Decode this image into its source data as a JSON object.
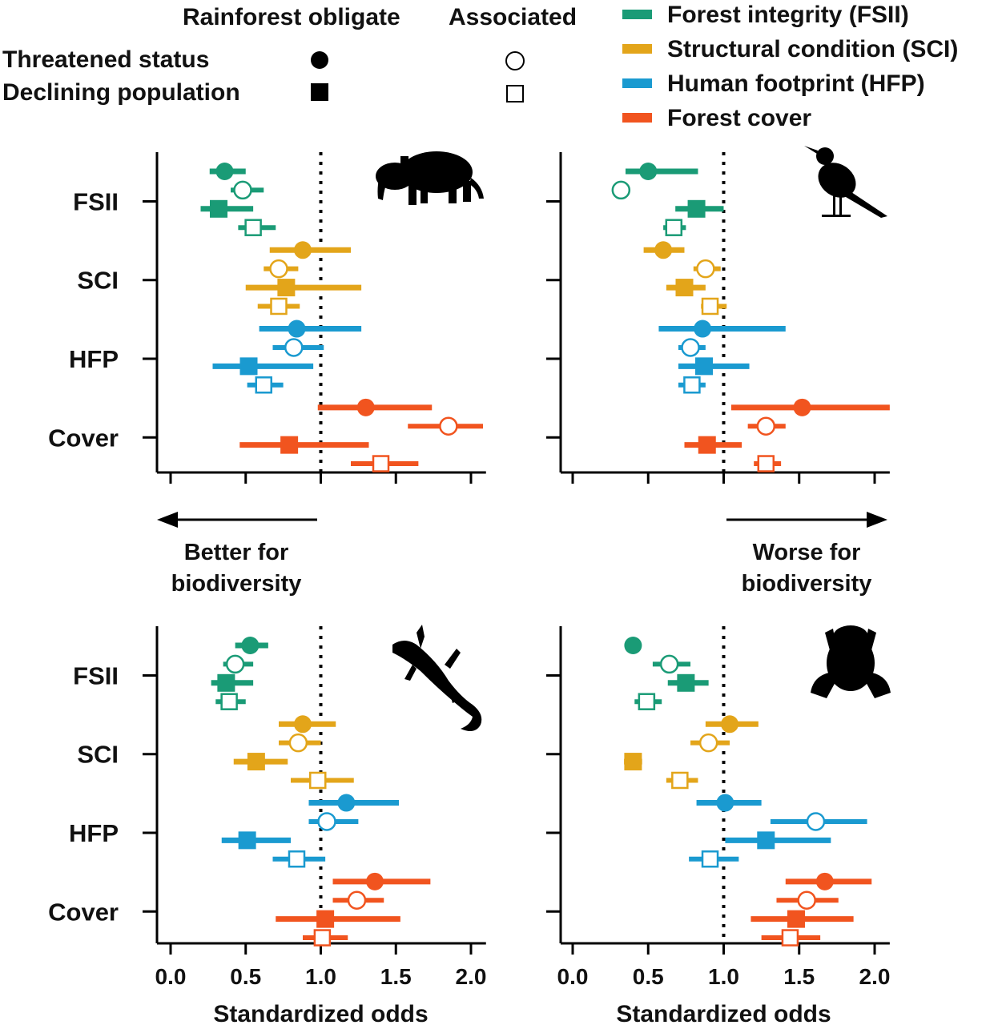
{
  "legend": {
    "shape_header_obligate": "Rainforest obligate",
    "shape_header_associated": "Associated",
    "shape_rows": [
      {
        "label": "Threatened status",
        "shape": "circle"
      },
      {
        "label": "Declining population",
        "shape": "square"
      }
    ],
    "colors": [
      {
        "label": "Forest integrity (FSII)",
        "color": "#1a9b76"
      },
      {
        "label": "Structural condition (SCI)",
        "color": "#e3a51a"
      },
      {
        "label": "Human footprint (HFP)",
        "color": "#1a9ad0"
      },
      {
        "label": "Forest cover",
        "color": "#f1541f"
      }
    ]
  },
  "annotations": {
    "left_text": [
      "Better for",
      "biodiversity"
    ],
    "right_text": [
      "Worse for",
      "biodiversity"
    ],
    "arrow_left_icon": "left-arrow-icon",
    "arrow_right_icon": "right-arrow-icon"
  },
  "chart_data": [
    {
      "type": "forest-plot",
      "panel": "mammals",
      "icon": "tapir-icon",
      "xlim": [
        -0.1,
        2.1
      ],
      "reference_line": 1.0,
      "xticks": [
        "0.0",
        "0.5",
        "1.0",
        "1.5",
        "2.0"
      ],
      "xlabel": "",
      "categories": [
        "FSII",
        "SCI",
        "HFP",
        "Cover"
      ],
      "colors": [
        "#1a9b76",
        "#e3a51a",
        "#1a9ad0",
        "#f1541f"
      ],
      "points": [
        {
          "category": "FSII",
          "group": "obligate",
          "response": "threatened",
          "value": 0.36,
          "lo": 0.26,
          "hi": 0.5
        },
        {
          "category": "FSII",
          "group": "associated",
          "response": "threatened",
          "value": 0.48,
          "lo": 0.4,
          "hi": 0.62
        },
        {
          "category": "FSII",
          "group": "obligate",
          "response": "declining",
          "value": 0.32,
          "lo": 0.2,
          "hi": 0.55
        },
        {
          "category": "FSII",
          "group": "associated",
          "response": "declining",
          "value": 0.55,
          "lo": 0.45,
          "hi": 0.7
        },
        {
          "category": "SCI",
          "group": "obligate",
          "response": "threatened",
          "value": 0.88,
          "lo": 0.66,
          "hi": 1.2
        },
        {
          "category": "SCI",
          "group": "associated",
          "response": "threatened",
          "value": 0.72,
          "lo": 0.62,
          "hi": 0.85
        },
        {
          "category": "SCI",
          "group": "obligate",
          "response": "declining",
          "value": 0.77,
          "lo": 0.5,
          "hi": 1.27
        },
        {
          "category": "SCI",
          "group": "associated",
          "response": "declining",
          "value": 0.72,
          "lo": 0.58,
          "hi": 0.86
        },
        {
          "category": "HFP",
          "group": "obligate",
          "response": "threatened",
          "value": 0.84,
          "lo": 0.59,
          "hi": 1.27
        },
        {
          "category": "HFP",
          "group": "associated",
          "response": "threatened",
          "value": 0.82,
          "lo": 0.68,
          "hi": 1.02
        },
        {
          "category": "HFP",
          "group": "obligate",
          "response": "declining",
          "value": 0.52,
          "lo": 0.28,
          "hi": 0.95
        },
        {
          "category": "HFP",
          "group": "associated",
          "response": "declining",
          "value": 0.62,
          "lo": 0.51,
          "hi": 0.75
        },
        {
          "category": "Cover",
          "group": "obligate",
          "response": "threatened",
          "value": 1.3,
          "lo": 0.98,
          "hi": 1.74
        },
        {
          "category": "Cover",
          "group": "associated",
          "response": "threatened",
          "value": 1.85,
          "lo": 1.58,
          "hi": 2.08
        },
        {
          "category": "Cover",
          "group": "obligate",
          "response": "declining",
          "value": 0.79,
          "lo": 0.46,
          "hi": 1.32
        },
        {
          "category": "Cover",
          "group": "associated",
          "response": "declining",
          "value": 1.4,
          "lo": 1.2,
          "hi": 1.65
        }
      ]
    },
    {
      "type": "forest-plot",
      "panel": "birds",
      "icon": "bird-icon",
      "xlim": [
        -0.1,
        2.1
      ],
      "reference_line": 1.0,
      "xticks": [
        "0.0",
        "0.5",
        "1.0",
        "1.5",
        "2.0"
      ],
      "xlabel": "",
      "categories": [
        "FSII",
        "SCI",
        "HFP",
        "Cover"
      ],
      "colors": [
        "#1a9b76",
        "#e3a51a",
        "#1a9ad0",
        "#f1541f"
      ],
      "points": [
        {
          "category": "FSII",
          "group": "obligate",
          "response": "threatened",
          "value": 0.5,
          "lo": 0.35,
          "hi": 0.83
        },
        {
          "category": "FSII",
          "group": "associated",
          "response": "threatened",
          "value": 0.32,
          "lo": null,
          "hi": null
        },
        {
          "category": "FSII",
          "group": "obligate",
          "response": "declining",
          "value": 0.82,
          "lo": 0.68,
          "hi": 1.0
        },
        {
          "category": "FSII",
          "group": "associated",
          "response": "declining",
          "value": 0.67,
          "lo": 0.6,
          "hi": 0.75
        },
        {
          "category": "SCI",
          "group": "obligate",
          "response": "threatened",
          "value": 0.6,
          "lo": 0.47,
          "hi": 0.74
        },
        {
          "category": "SCI",
          "group": "associated",
          "response": "threatened",
          "value": 0.88,
          "lo": 0.8,
          "hi": 0.98
        },
        {
          "category": "SCI",
          "group": "obligate",
          "response": "declining",
          "value": 0.74,
          "lo": 0.62,
          "hi": 0.88
        },
        {
          "category": "SCI",
          "group": "associated",
          "response": "declining",
          "value": 0.91,
          "lo": 0.85,
          "hi": 1.02
        },
        {
          "category": "HFP",
          "group": "obligate",
          "response": "threatened",
          "value": 0.86,
          "lo": 0.57,
          "hi": 1.41
        },
        {
          "category": "HFP",
          "group": "associated",
          "response": "threatened",
          "value": 0.78,
          "lo": 0.7,
          "hi": 0.88
        },
        {
          "category": "HFP",
          "group": "obligate",
          "response": "declining",
          "value": 0.87,
          "lo": 0.7,
          "hi": 1.17
        },
        {
          "category": "HFP",
          "group": "associated",
          "response": "declining",
          "value": 0.79,
          "lo": 0.7,
          "hi": 0.88
        },
        {
          "category": "Cover",
          "group": "obligate",
          "response": "threatened",
          "value": 1.52,
          "lo": 1.05,
          "hi": 2.1
        },
        {
          "category": "Cover",
          "group": "associated",
          "response": "threatened",
          "value": 1.28,
          "lo": 1.16,
          "hi": 1.41
        },
        {
          "category": "Cover",
          "group": "obligate",
          "response": "declining",
          "value": 0.89,
          "lo": 0.74,
          "hi": 1.12
        },
        {
          "category": "Cover",
          "group": "associated",
          "response": "declining",
          "value": 1.28,
          "lo": 1.2,
          "hi": 1.38
        }
      ]
    },
    {
      "type": "forest-plot",
      "panel": "reptiles",
      "icon": "lizard-icon",
      "xlim": [
        -0.1,
        2.1
      ],
      "reference_line": 1.0,
      "xticks": [
        "0.0",
        "0.5",
        "1.0",
        "1.5",
        "2.0"
      ],
      "xlabel": "Standardized odds",
      "categories": [
        "FSII",
        "SCI",
        "HFP",
        "Cover"
      ],
      "colors": [
        "#1a9b76",
        "#e3a51a",
        "#1a9ad0",
        "#f1541f"
      ],
      "points": [
        {
          "category": "FSII",
          "group": "obligate",
          "response": "threatened",
          "value": 0.53,
          "lo": 0.43,
          "hi": 0.65
        },
        {
          "category": "FSII",
          "group": "associated",
          "response": "threatened",
          "value": 0.43,
          "lo": 0.35,
          "hi": 0.55
        },
        {
          "category": "FSII",
          "group": "obligate",
          "response": "declining",
          "value": 0.37,
          "lo": 0.27,
          "hi": 0.55
        },
        {
          "category": "FSII",
          "group": "associated",
          "response": "declining",
          "value": 0.39,
          "lo": 0.3,
          "hi": 0.5
        },
        {
          "category": "SCI",
          "group": "obligate",
          "response": "threatened",
          "value": 0.88,
          "lo": 0.72,
          "hi": 1.1
        },
        {
          "category": "SCI",
          "group": "associated",
          "response": "threatened",
          "value": 0.85,
          "lo": 0.72,
          "hi": 1.0
        },
        {
          "category": "SCI",
          "group": "obligate",
          "response": "declining",
          "value": 0.57,
          "lo": 0.42,
          "hi": 0.78
        },
        {
          "category": "SCI",
          "group": "associated",
          "response": "declining",
          "value": 0.98,
          "lo": 0.8,
          "hi": 1.22
        },
        {
          "category": "HFP",
          "group": "obligate",
          "response": "threatened",
          "value": 1.17,
          "lo": 0.92,
          "hi": 1.52
        },
        {
          "category": "HFP",
          "group": "associated",
          "response": "threatened",
          "value": 1.04,
          "lo": 0.92,
          "hi": 1.25
        },
        {
          "category": "HFP",
          "group": "obligate",
          "response": "declining",
          "value": 0.51,
          "lo": 0.34,
          "hi": 0.8
        },
        {
          "category": "HFP",
          "group": "associated",
          "response": "declining",
          "value": 0.84,
          "lo": 0.68,
          "hi": 1.03
        },
        {
          "category": "Cover",
          "group": "obligate",
          "response": "threatened",
          "value": 1.36,
          "lo": 1.08,
          "hi": 1.73
        },
        {
          "category": "Cover",
          "group": "associated",
          "response": "threatened",
          "value": 1.24,
          "lo": 1.08,
          "hi": 1.42
        },
        {
          "category": "Cover",
          "group": "obligate",
          "response": "declining",
          "value": 1.03,
          "lo": 0.7,
          "hi": 1.53
        },
        {
          "category": "Cover",
          "group": "associated",
          "response": "declining",
          "value": 1.01,
          "lo": 0.88,
          "hi": 1.18
        }
      ]
    },
    {
      "type": "forest-plot",
      "panel": "amphibians",
      "icon": "frog-icon",
      "xlim": [
        -0.1,
        2.1
      ],
      "reference_line": 1.0,
      "xticks": [
        "0.0",
        "0.5",
        "1.0",
        "1.5",
        "2.0"
      ],
      "xlabel": "Standardized odds",
      "categories": [
        "FSII",
        "SCI",
        "HFP",
        "Cover"
      ],
      "colors": [
        "#1a9b76",
        "#e3a51a",
        "#1a9ad0",
        "#f1541f"
      ],
      "points": [
        {
          "category": "FSII",
          "group": "obligate",
          "response": "threatened",
          "value": 0.4,
          "lo": 0.35,
          "hi": 0.45
        },
        {
          "category": "FSII",
          "group": "associated",
          "response": "threatened",
          "value": 0.64,
          "lo": 0.53,
          "hi": 0.78
        },
        {
          "category": "FSII",
          "group": "obligate",
          "response": "declining",
          "value": 0.75,
          "lo": 0.63,
          "hi": 0.9
        },
        {
          "category": "FSII",
          "group": "associated",
          "response": "declining",
          "value": 0.49,
          "lo": 0.41,
          "hi": 0.59
        },
        {
          "category": "SCI",
          "group": "obligate",
          "response": "threatened",
          "value": 1.04,
          "lo": 0.88,
          "hi": 1.23
        },
        {
          "category": "SCI",
          "group": "associated",
          "response": "threatened",
          "value": 0.9,
          "lo": 0.78,
          "hi": 1.04
        },
        {
          "category": "SCI",
          "group": "obligate",
          "response": "declining",
          "value": 0.4,
          "lo": 0.34,
          "hi": 0.46
        },
        {
          "category": "SCI",
          "group": "associated",
          "response": "declining",
          "value": 0.71,
          "lo": 0.62,
          "hi": 0.83
        },
        {
          "category": "HFP",
          "group": "obligate",
          "response": "threatened",
          "value": 1.01,
          "lo": 0.82,
          "hi": 1.25
        },
        {
          "category": "HFP",
          "group": "associated",
          "response": "threatened",
          "value": 1.61,
          "lo": 1.31,
          "hi": 1.95
        },
        {
          "category": "HFP",
          "group": "obligate",
          "response": "declining",
          "value": 1.28,
          "lo": 1.01,
          "hi": 1.71
        },
        {
          "category": "HFP",
          "group": "associated",
          "response": "declining",
          "value": 0.91,
          "lo": 0.77,
          "hi": 1.1
        },
        {
          "category": "Cover",
          "group": "obligate",
          "response": "threatened",
          "value": 1.67,
          "lo": 1.41,
          "hi": 1.98
        },
        {
          "category": "Cover",
          "group": "associated",
          "response": "threatened",
          "value": 1.55,
          "lo": 1.35,
          "hi": 1.76
        },
        {
          "category": "Cover",
          "group": "obligate",
          "response": "declining",
          "value": 1.48,
          "lo": 1.18,
          "hi": 1.86
        },
        {
          "category": "Cover",
          "group": "associated",
          "response": "declining",
          "value": 1.44,
          "lo": 1.25,
          "hi": 1.64
        }
      ]
    }
  ]
}
